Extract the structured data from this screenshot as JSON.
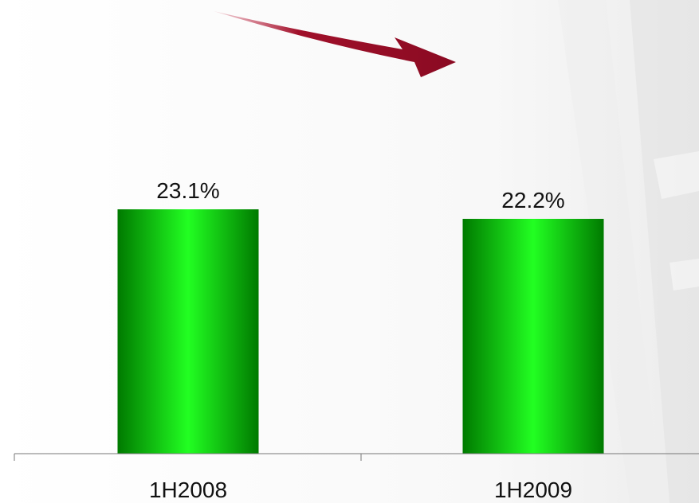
{
  "chart_data": {
    "type": "bar",
    "categories": [
      "1H2008",
      "1H2009"
    ],
    "values": [
      23.1,
      22.2
    ],
    "data_labels": [
      "23.1%",
      "22.2%"
    ],
    "unit": "%",
    "ylim": [
      0,
      30
    ],
    "grid": false,
    "legend": "none",
    "colors": {
      "bar_edge": "#007a00",
      "bar_center": "#22ff22",
      "axis": "#777777",
      "trend_arrow": "#a0102a"
    }
  }
}
